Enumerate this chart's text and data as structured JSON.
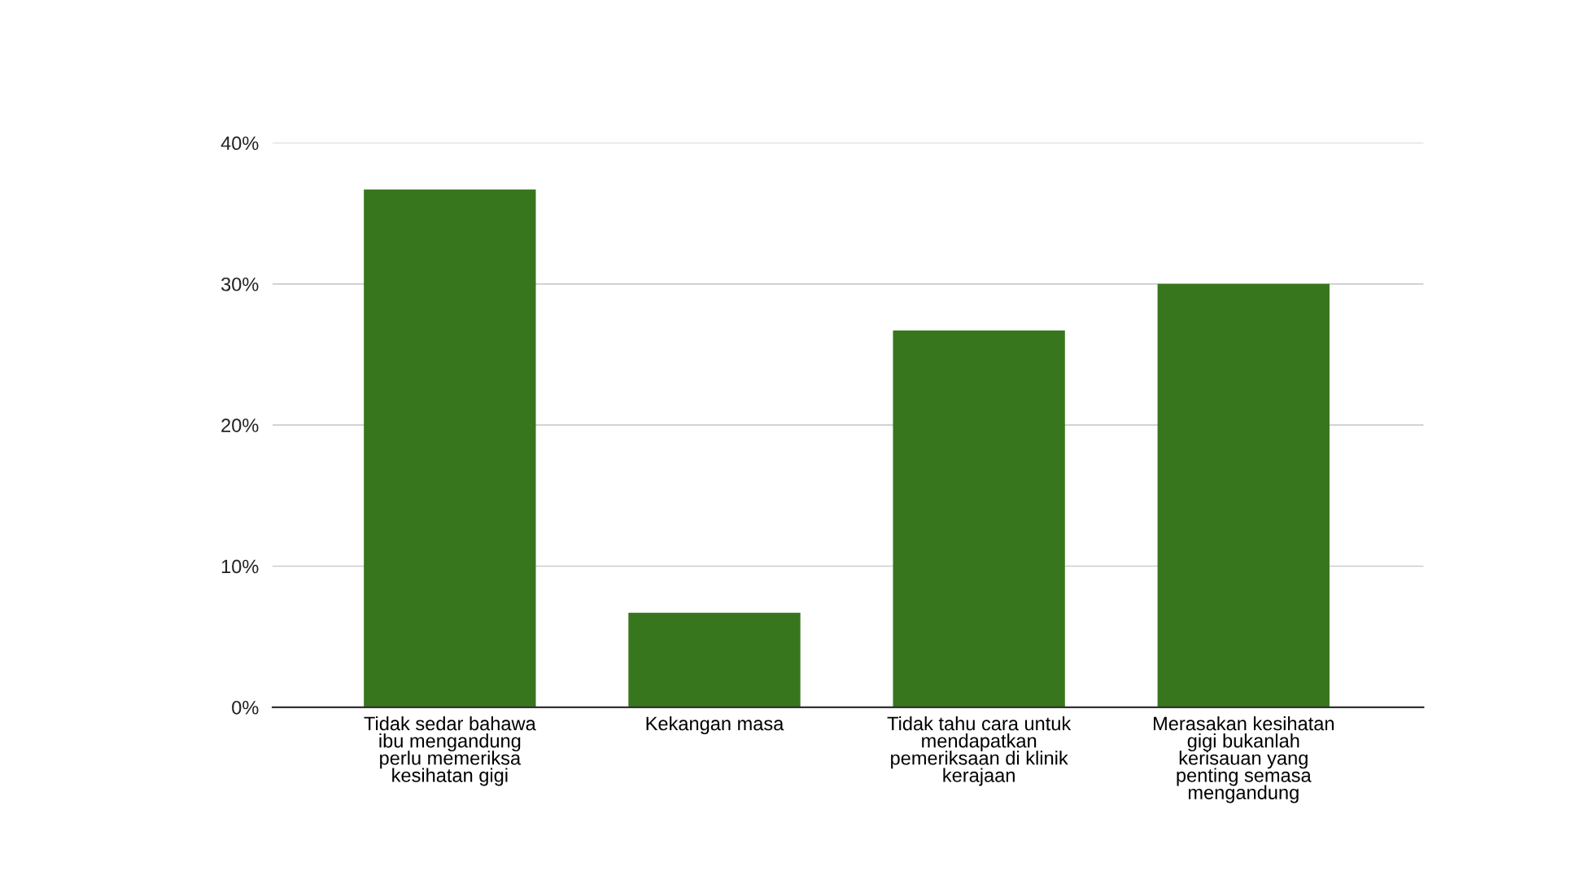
{
  "chart_data": {
    "type": "bar",
    "categories": [
      "Tidak sedar bahawa\nibu mengandung\nperlu memeriksa\nkesihatan gigi",
      "Kekangan masa",
      "Tidak tahu cara untuk\nmendapatkan\npemeriksaan di klinik\nkerajaan",
      "Merasakan kesihatan\ngigi bukanlah\nkerisauan yang\npenting semasa\nmengandung"
    ],
    "values": [
      36.7,
      6.7,
      26.7,
      30
    ],
    "color": "#38761d",
    "ylim": [
      0,
      40
    ],
    "yticks": [
      {
        "value": 0,
        "label": "0%"
      },
      {
        "value": 10,
        "label": "10%"
      },
      {
        "value": 20,
        "label": "20%"
      },
      {
        "value": 30,
        "label": "30%"
      },
      {
        "value": 40,
        "label": "40%"
      }
    ],
    "grid": "y",
    "legend": false
  }
}
